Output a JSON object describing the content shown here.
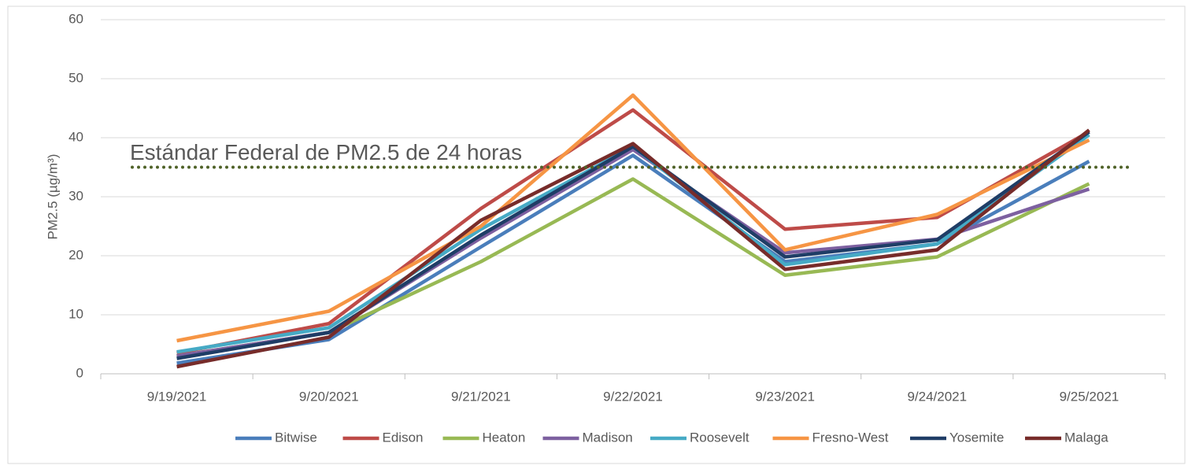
{
  "chart_data": {
    "type": "line",
    "y_label": "PM2.5 (µg/m³)",
    "categories": [
      "9/19/2021",
      "9/20/2021",
      "9/21/2021",
      "9/22/2021",
      "9/23/2021",
      "9/24/2021",
      "9/25/2021"
    ],
    "series": [
      {
        "name": "Bitwise",
        "color": "#4a7ebb",
        "values": [
          1.8,
          5.8,
          21.5,
          37,
          19,
          22,
          36
        ]
      },
      {
        "name": "Edison",
        "color": "#be4b48",
        "values": [
          3.5,
          8.5,
          28,
          44.7,
          24.5,
          26.5,
          41
        ]
      },
      {
        "name": "Heaton",
        "color": "#98b954",
        "values": [
          3,
          7,
          19,
          33,
          16.7,
          19.8,
          32.2
        ]
      },
      {
        "name": "Madison",
        "color": "#7d60a0",
        "values": [
          3,
          7,
          23,
          38,
          20.5,
          22.8,
          31.3
        ]
      },
      {
        "name": "Roosevelt",
        "color": "#46aac5",
        "values": [
          3.7,
          7.8,
          24.5,
          38.5,
          18.5,
          22,
          40.5
        ]
      },
      {
        "name": "Fresno-West",
        "color": "#f69544",
        "values": [
          5.6,
          10.6,
          25,
          47.2,
          21,
          27,
          39.6
        ]
      },
      {
        "name": "Yosemite",
        "color": "#1f3d66",
        "values": [
          2.6,
          7,
          23.5,
          38.5,
          19.8,
          22.7,
          41
        ]
      },
      {
        "name": "Malaga",
        "color": "#772c2a",
        "values": [
          1.2,
          6.2,
          26,
          39,
          17.7,
          21,
          41.3
        ]
      }
    ],
    "reference_line": {
      "value": 35,
      "label": "Estándar Federal de PM2.5 de 24 horas",
      "color": "#4f6228"
    },
    "ylim": [
      0,
      60
    ],
    "yticks": [
      0,
      10,
      20,
      30,
      40,
      50,
      60
    ],
    "grid": true,
    "legend": "bottom"
  }
}
